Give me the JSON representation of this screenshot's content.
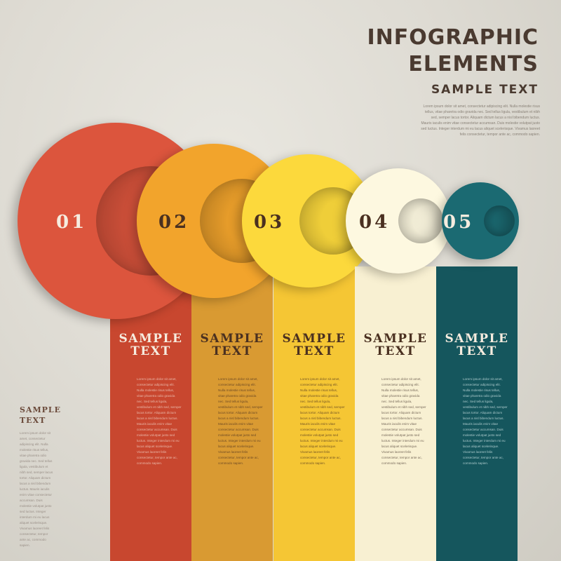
{
  "header": {
    "line1": "INFOGRAPHIC",
    "line2": "ELEMENTS",
    "subtitle": "SAMPLE TEXT",
    "intro": "Lorem ipsum dolor sit amet, consectetur adipiscing elit. Nulla molestie risus tellus, vitae pharetra odio gravida nec. Sed tellus ligula, vestibulum et nibh sed, semper lacus tortor. Aliquam dictum lacus a nisl bibendum luctus. Mauris iaculis enim vitae consectetur accumsan. Duis molestie volutpat justo sed luctus. Integer interdum mi eu lacus aliquet scelerisque. Vivamus laoreet felis consectetur, tempor ante ac, commodo sapien."
  },
  "side": {
    "title1": "SAMPLE",
    "title2": "TEXT",
    "body": "Lorem ipsum dolor sit amet, consectetur adipiscing elit. Nulla molestie risus tellus, vitae pharetra odio gravida nec. Sed tellus ligula, vestibulum et nibh sed, semper lacus tortor. Aliquam dictum lacus a nisl bibendum luctus. Mauris iaculis enim vitae consectetur accumsan. Duis molestie volutpat justo sed luctus. Integer interdum mi eu lacus aliquet scelerisque. Vivamus laoreet felis consectetur, tempor ante ac, commodo sapien."
  },
  "steps": [
    {
      "number": "01",
      "title1": "SAMPLE",
      "title2": "TEXT",
      "color": "#dc553d",
      "col_color": "#c8472f",
      "text_color": "#f2d8cc",
      "body": "Lorem ipsum dolor sit amet, consectetur adipiscing elit. Nulla molestie risus tellus, vitae pharetra odio gravida nec. Sed tellus ligula, vestibulum et nibh sed, semper lacus tortor. Aliquam dictum lacus a nisl bibendum luctus. Mauris iaculis enim vitae consectetur accumsan. Duis molestie volutpat justo sed luctus. Integer interdum mi eu lacus aliquet scelerisque. Vivamus laoreet felis consectetur, tempor ante ac, commodo sapien."
    },
    {
      "number": "02",
      "title1": "SAMPLE",
      "title2": "TEXT",
      "color": "#f2a42c",
      "col_color": "#d99a32",
      "text_color": "#4a3020",
      "body": "Lorem ipsum dolor sit amet, consectetur adipiscing elit. Nulla molestie risus tellus, vitae pharetra odio gravida nec. Sed tellus ligula, vestibulum et nibh sed, semper lacus tortor. Aliquam dictum lacus a nisl bibendum luctus. Mauris iaculis enim vitae consectetur accumsan. Duis molestie volutpat justo sed luctus. Integer interdum mi eu lacus aliquet scelerisque. Vivamus laoreet felis consectetur, tempor ante ac, commodo sapien."
    },
    {
      "number": "03",
      "title1": "SAMPLE",
      "title2": "TEXT",
      "color": "#fcd93c",
      "col_color": "#f5c634",
      "text_color": "#4a3020",
      "body": "Lorem ipsum dolor sit amet, consectetur adipiscing elit. Nulla molestie risus tellus, vitae pharetra odio gravida nec. Sed tellus ligula, vestibulum et nibh sed, semper lacus tortor. Aliquam dictum lacus a nisl bibendum luctus. Mauris iaculis enim vitae consectetur accumsan. Duis molestie volutpat justo sed luctus. Integer interdum mi eu lacus aliquet scelerisque. Vivamus laoreet felis consectetur, tempor ante ac, commodo sapien."
    },
    {
      "number": "04",
      "title1": "SAMPLE",
      "title2": "TEXT",
      "color": "#fdf8e0",
      "col_color": "#f8f0d2",
      "text_color": "#4a3a30",
      "body": "Lorem ipsum dolor sit amet, consectetur adipiscing elit. Nulla molestie risus tellus, vitae pharetra odio gravida nec. Sed tellus ligula, vestibulum et nibh sed, semper lacus tortor. Aliquam dictum lacus a nisl bibendum luctus. Mauris iaculis enim vitae consectetur accumsan. Duis molestie volutpat justo sed luctus. Integer interdum mi eu lacus aliquet scelerisque. Vivamus laoreet felis consectetur, tempor ante ac, commodo sapien."
    },
    {
      "number": "05",
      "title1": "SAMPLE",
      "title2": "TEXT",
      "color": "#1b6a72",
      "col_color": "#15565d",
      "text_color": "#d8ecec",
      "body": "Lorem ipsum dolor sit amet, consectetur adipiscing elit. Nulla molestie risus tellus, vitae pharetra odio gravida nec. Sed tellus ligula, vestibulum et nibh sed, semper lacus tortor. Aliquam dictum lacus a nisl bibendum luctus. Mauris iaculis enim vitae consectetur accumsan. Duis molestie volutpat justo sed luctus. Integer interdum mi eu lacus aliquet scelerisque. Vivamus laoreet felis consectetur, tempor ante ac, commodo sapien."
    }
  ]
}
